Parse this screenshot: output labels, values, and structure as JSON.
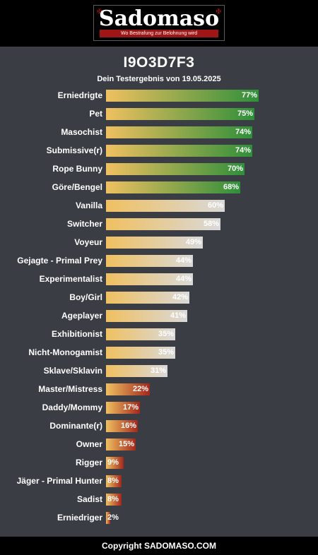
{
  "header": {
    "logo_text": "Sadomaso",
    "logo_tagline": "Wo Bestrafung zur Belohnung wird"
  },
  "result": {
    "id": "I9O3D7F3",
    "subtitle": "Dein Testergebnis von 19.05.2025"
  },
  "colors": {
    "high": "#2f8f3a",
    "mid": "#d9d9d9",
    "low": "#a3271c",
    "base": "#f0c060"
  },
  "chart_data": {
    "type": "bar",
    "orientation": "horizontal",
    "categories": [
      "Erniedrigte",
      "Pet",
      "Masochist",
      "Submissive(r)",
      "Rope Bunny",
      "Göre/Bengel",
      "Vanilla",
      "Switcher",
      "Voyeur",
      "Gejagte - Primal Prey",
      "Experimentalist",
      "Boy/Girl",
      "Ageplayer",
      "Exhibitionist",
      "Nicht-Monogamist",
      "Sklave/Sklavin",
      "Master/Mistress",
      "Daddy/Mommy",
      "Dominante(r)",
      "Owner",
      "Rigger",
      "Jäger - Primal Hunter",
      "Sadist",
      "Erniedriger"
    ],
    "values": [
      77,
      75,
      74,
      74,
      70,
      68,
      60,
      58,
      49,
      44,
      44,
      42,
      41,
      35,
      35,
      31,
      22,
      17,
      16,
      15,
      9,
      8,
      8,
      2
    ],
    "value_labels": [
      "77%",
      "75%",
      "74%",
      "74%",
      "70%",
      "68%",
      "60%",
      "58%",
      "49%",
      "44%",
      "44%",
      "42%",
      "41%",
      "35%",
      "35%",
      "31%",
      "22%",
      "17%",
      "16%",
      "15%",
      "9%",
      "8%",
      "8%",
      "2%"
    ],
    "xlim": [
      0,
      100
    ]
  },
  "footer": {
    "copyright": "Copyright SADOMASO.COM"
  }
}
